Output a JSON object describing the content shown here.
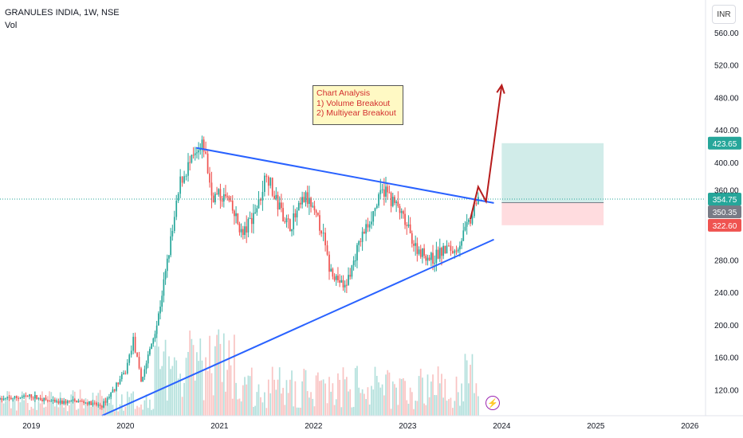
{
  "header": {
    "symbol_line": "GRANULES INDIA, 1W, NSE",
    "indicator": "Vol"
  },
  "currency_button": "INR",
  "note": {
    "line1": "Chart Analysis",
    "line2": "1) Volume Breakout",
    "line3": "2) Multiyear Breakout"
  },
  "price_labels": {
    "target": "423.65",
    "current": "354.75",
    "entry": "350.35",
    "stop": "322.60",
    "obscured_tick": "360.00"
  },
  "colors": {
    "up": "#26a69a",
    "down": "#ef5350",
    "trendline": "#2962ff",
    "arrow": "#b71c1c",
    "target_zone": "#b2dfdb",
    "stop_zone": "#ffcdd2"
  },
  "flash_icon": "lightning-icon",
  "chart_data": {
    "type": "candlestick",
    "timeframe": "1W",
    "ylim": [
      88,
      600
    ],
    "y_ticks": [
      120,
      160,
      200,
      240,
      280,
      320,
      360,
      400,
      440,
      480,
      520,
      560
    ],
    "x_ticks": [
      "2019",
      "2020",
      "2021",
      "2022",
      "2023",
      "2024",
      "2025",
      "2026"
    ],
    "x_range": [
      "2018-09",
      "2026-03"
    ],
    "price_path": [
      [
        "2018-09",
        108
      ],
      [
        "2019-01",
        112
      ],
      [
        "2019-04",
        104
      ],
      [
        "2019-07",
        106
      ],
      [
        "2019-10",
        100
      ],
      [
        "2020-01",
        142
      ],
      [
        "2020-02",
        182
      ],
      [
        "2020-03",
        130
      ],
      [
        "2020-05",
        200
      ],
      [
        "2020-07",
        315
      ],
      [
        "2020-08",
        375
      ],
      [
        "2020-09",
        395
      ],
      [
        "2020-11",
        420
      ],
      [
        "2020-12",
        360
      ],
      [
        "2021-02",
        355
      ],
      [
        "2021-04",
        310
      ],
      [
        "2021-06",
        350
      ],
      [
        "2021-07",
        390
      ],
      [
        "2021-08",
        355
      ],
      [
        "2021-10",
        320
      ],
      [
        "2021-12",
        358
      ],
      [
        "2022-02",
        318
      ],
      [
        "2022-03",
        270
      ],
      [
        "2022-05",
        245
      ],
      [
        "2022-07",
        305
      ],
      [
        "2022-10",
        368
      ],
      [
        "2022-12",
        340
      ],
      [
        "2023-02",
        295
      ],
      [
        "2023-04",
        280
      ],
      [
        "2023-06",
        295
      ],
      [
        "2023-07",
        290
      ],
      [
        "2023-09",
        328
      ],
      [
        "2023-10",
        352
      ]
    ],
    "trendlines": [
      {
        "name": "resistance",
        "from": [
          "2020-10",
          418
        ],
        "to": [
          "2023-12",
          350
        ]
      },
      {
        "name": "support",
        "from": [
          "2019-10",
          88
        ],
        "to": [
          "2023-12",
          305
        ]
      }
    ],
    "arrow_path": [
      [
        "2023-09",
        330
      ],
      [
        "2023-10",
        370
      ],
      [
        "2023-11",
        352
      ],
      [
        "2024-01",
        495
      ]
    ],
    "position": {
      "target": 423.65,
      "entry": 350.35,
      "stop": 322.6,
      "start": "2024-01",
      "end": "2025-02"
    },
    "last_price": 354.75
  }
}
